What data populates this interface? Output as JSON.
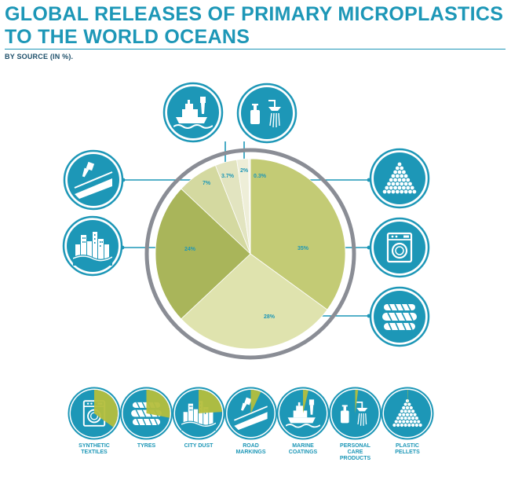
{
  "header": {
    "title": "GLOBAL RELEASES OF PRIMARY MICROPLASTICS TO THE WORLD OCEANS",
    "subtitle": "BY SOURCE (IN %)."
  },
  "colors": {
    "accent": "#1d97b7",
    "pie_ring": "#8a8d95",
    "slice_1": "#c3cb75",
    "slice_2": "#dfe3ae",
    "slice_3": "#a9b55a",
    "slice_4": "#d4d9a0",
    "slice_5": "#e2e4c0",
    "slice_6": "#eeeed8",
    "slice_7": "#f4f2e6"
  },
  "chart_data": {
    "type": "pie",
    "slices": [
      {
        "label": "35%",
        "value": 35,
        "source": "SYNTHETIC TEXTILES",
        "icon": "washing-machine-icon"
      },
      {
        "label": "28%",
        "value": 28,
        "source": "TYRES",
        "icon": "tyres-icon"
      },
      {
        "label": "24%",
        "value": 24,
        "source": "CITY DUST",
        "icon": "city-icon"
      },
      {
        "label": "7%",
        "value": 7,
        "source": "ROAD MARKINGS",
        "icon": "road-paint-icon"
      },
      {
        "label": "3.7%",
        "value": 3.7,
        "source": "MARINE COATINGS",
        "icon": "ship-paint-icon"
      },
      {
        "label": "2%",
        "value": 2,
        "source": "PERSONAL CARE PRODUCTS",
        "icon": "shower-bottle-icon"
      },
      {
        "label": "0.3%",
        "value": 0.3,
        "source": "PLASTIC PELLETS",
        "icon": "pellets-icon"
      }
    ]
  },
  "legend": [
    {
      "label_lines": [
        "SYNTHETIC",
        "TEXTILES"
      ],
      "value": 35,
      "icon": "washing-machine-icon"
    },
    {
      "label_lines": [
        "TYRES"
      ],
      "value": 28,
      "icon": "tyres-icon"
    },
    {
      "label_lines": [
        "CITY DUST"
      ],
      "value": 24,
      "icon": "city-icon"
    },
    {
      "label_lines": [
        "ROAD",
        "MARKINGS"
      ],
      "value": 7,
      "icon": "road-paint-icon"
    },
    {
      "label_lines": [
        "MARINE",
        "COATINGS"
      ],
      "value": 3.7,
      "icon": "ship-paint-icon"
    },
    {
      "label_lines": [
        "PERSONAL",
        "CARE",
        "PRODUCTS"
      ],
      "value": 2,
      "icon": "shower-bottle-icon"
    },
    {
      "label_lines": [
        "PLASTIC",
        "PELLETS"
      ],
      "value": 0.3,
      "icon": "pellets-icon"
    }
  ]
}
